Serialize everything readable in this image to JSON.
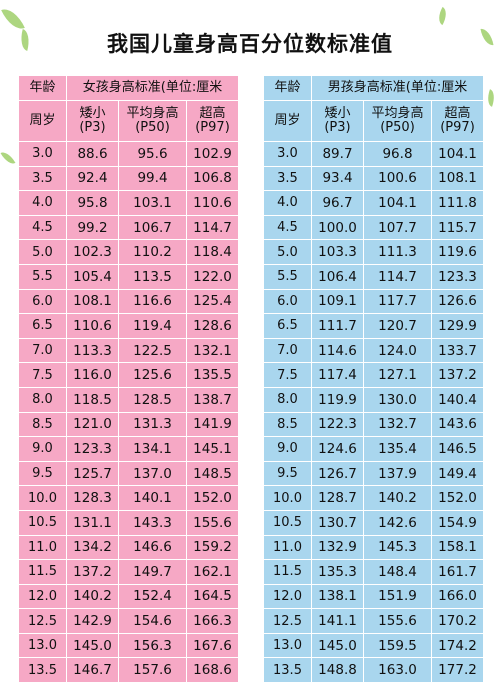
{
  "title": "我国儿童身高百分位数标准值",
  "header": {
    "age_label_top": "年龄",
    "age_label_bottom": "周岁",
    "girls_group": "女孩身高标准(单位:厘米",
    "boys_group": "男孩身高标准(单位:厘米",
    "col_short_name": "矮小",
    "col_short_code": "(P3)",
    "col_avg_name": "平均身高",
    "col_avg_code": "(P50)",
    "col_tall_name": "超高",
    "col_tall_code": "(P97)"
  },
  "girls_rows": [
    [
      "3.0",
      "88.6",
      "95.6",
      "102.9"
    ],
    [
      "3.5",
      "92.4",
      "99.4",
      "106.8"
    ],
    [
      "4.0",
      "95.8",
      "103.1",
      "110.6"
    ],
    [
      "4.5",
      "99.2",
      "106.7",
      "114.7"
    ],
    [
      "5.0",
      "102.3",
      "110.2",
      "118.4"
    ],
    [
      "5.5",
      "105.4",
      "113.5",
      "122.0"
    ],
    [
      "6.0",
      "108.1",
      "116.6",
      "125.4"
    ],
    [
      "6.5",
      "110.6",
      "119.4",
      "128.6"
    ],
    [
      "7.0",
      "113.3",
      "122.5",
      "132.1"
    ],
    [
      "7.5",
      "116.0",
      "125.6",
      "135.5"
    ],
    [
      "8.0",
      "118.5",
      "128.5",
      "138.7"
    ],
    [
      "8.5",
      "121.0",
      "131.3",
      "141.9"
    ],
    [
      "9.0",
      "123.3",
      "134.1",
      "145.1"
    ],
    [
      "9.5",
      "125.7",
      "137.0",
      "148.5"
    ],
    [
      "10.0",
      "128.3",
      "140.1",
      "152.0"
    ],
    [
      "10.5",
      "131.1",
      "143.3",
      "155.6"
    ],
    [
      "11.0",
      "134.2",
      "146.6",
      "159.2"
    ],
    [
      "11.5",
      "137.2",
      "149.7",
      "162.1"
    ],
    [
      "12.0",
      "140.2",
      "152.4",
      "164.5"
    ],
    [
      "12.5",
      "142.9",
      "154.6",
      "166.3"
    ],
    [
      "13.0",
      "145.0",
      "156.3",
      "167.6"
    ],
    [
      "13.5",
      "146.7",
      "157.6",
      "168.6"
    ]
  ],
  "boys_rows": [
    [
      "3.0",
      "89.7",
      "96.8",
      "104.1"
    ],
    [
      "3.5",
      "93.4",
      "100.6",
      "108.1"
    ],
    [
      "4.0",
      "96.7",
      "104.1",
      "111.8"
    ],
    [
      "4.5",
      "100.0",
      "107.7",
      "115.7"
    ],
    [
      "5.0",
      "103.3",
      "111.3",
      "119.6"
    ],
    [
      "5.5",
      "106.4",
      "114.7",
      "123.3"
    ],
    [
      "6.0",
      "109.1",
      "117.7",
      "126.6"
    ],
    [
      "6.5",
      "111.7",
      "120.7",
      "129.9"
    ],
    [
      "7.0",
      "114.6",
      "124.0",
      "133.7"
    ],
    [
      "7.5",
      "117.4",
      "127.1",
      "137.2"
    ],
    [
      "8.0",
      "119.9",
      "130.0",
      "140.4"
    ],
    [
      "8.5",
      "122.3",
      "132.7",
      "143.6"
    ],
    [
      "9.0",
      "124.6",
      "135.4",
      "146.5"
    ],
    [
      "9.5",
      "126.7",
      "137.9",
      "149.4"
    ],
    [
      "10.0",
      "128.7",
      "140.2",
      "152.0"
    ],
    [
      "10.5",
      "130.7",
      "142.6",
      "154.9"
    ],
    [
      "11.0",
      "132.9",
      "145.3",
      "158.1"
    ],
    [
      "11.5",
      "135.3",
      "148.4",
      "161.7"
    ],
    [
      "12.0",
      "138.1",
      "151.9",
      "166.0"
    ],
    [
      "12.5",
      "141.1",
      "155.6",
      "170.2"
    ],
    [
      "13.0",
      "145.0",
      "159.5",
      "174.2"
    ],
    [
      "13.5",
      "148.8",
      "163.0",
      "177.2"
    ]
  ]
}
